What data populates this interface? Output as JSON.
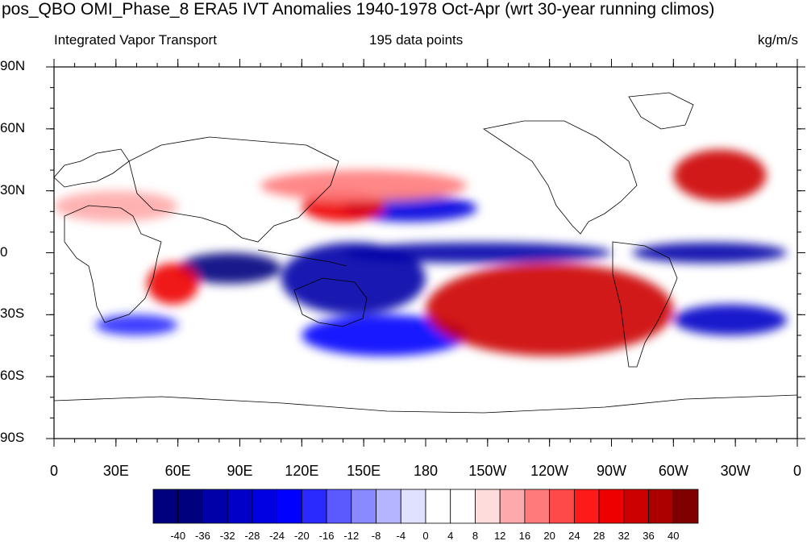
{
  "title": "pos_QBO OMI_Phase_8 ERA5 IVT Anomalies 1940-1978 Oct-Apr (wrt 30-year running climos)",
  "subtitle_left": "Integrated Vapor Transport",
  "subtitle_center": "195 data points",
  "subtitle_right": "kg/m/s",
  "y_ticks": [
    "90N",
    "60N",
    "30N",
    "0",
    "30S",
    "60S",
    "90S"
  ],
  "x_ticks": [
    "0",
    "30E",
    "60E",
    "90E",
    "120E",
    "150E",
    "180",
    "150W",
    "120W",
    "90W",
    "60W",
    "30W",
    "0"
  ],
  "colorbar": {
    "labels": [
      "-40",
      "-36",
      "-32",
      "-28",
      "-24",
      "-20",
      "-16",
      "-12",
      "-8",
      "-4",
      "0",
      "4",
      "8",
      "12",
      "16",
      "20",
      "24",
      "28",
      "32",
      "36",
      "40"
    ],
    "colors": [
      "#00007f",
      "#0000a8",
      "#0000c8",
      "#0000e0",
      "#0000ff",
      "#2a2aff",
      "#5a5aff",
      "#8a8aff",
      "#b5b5ff",
      "#e0e0ff",
      "#ffffff",
      "#ffffff",
      "#ffdcdc",
      "#ffaaaa",
      "#ff7a7a",
      "#ff4a4a",
      "#ff1a1a",
      "#ee0000",
      "#cc0000",
      "#aa0000",
      "#800000"
    ]
  },
  "chart_data": {
    "type": "heatmap",
    "title": "pos_QBO OMI_Phase_8 ERA5 IVT Anomalies 1940-1978 Oct-Apr (wrt 30-year running climos)",
    "variable": "Integrated Vapor Transport",
    "units": "kg/m/s",
    "n_points": 195,
    "lon_range": [
      0,
      360
    ],
    "lat_range": [
      -90,
      90
    ],
    "levels": [
      -40,
      -36,
      -32,
      -28,
      -24,
      -20,
      -16,
      -12,
      -8,
      -4,
      0,
      4,
      8,
      12,
      16,
      20,
      24,
      28,
      32,
      36,
      40
    ],
    "anomaly_features": [
      {
        "sign": "neg",
        "lon": [
          110,
          180
        ],
        "lat": [
          -30,
          5
        ],
        "value": -36
      },
      {
        "sign": "neg",
        "lon": [
          60,
          110
        ],
        "lat": [
          -15,
          0
        ],
        "value": -40
      },
      {
        "sign": "neg",
        "lon": [
          140,
          270
        ],
        "lat": [
          -5,
          5
        ],
        "value": -36
      },
      {
        "sign": "neg",
        "lon": [
          280,
          355
        ],
        "lat": [
          -5,
          5
        ],
        "value": -36
      },
      {
        "sign": "neg",
        "lon": [
          300,
          355
        ],
        "lat": [
          -40,
          -25
        ],
        "value": -32
      },
      {
        "sign": "neg",
        "lon": [
          120,
          200
        ],
        "lat": [
          -50,
          -30
        ],
        "value": -24
      },
      {
        "sign": "neg",
        "lon": [
          140,
          205
        ],
        "lat": [
          15,
          28
        ],
        "value": -28
      },
      {
        "sign": "neg",
        "lon": [
          20,
          60
        ],
        "lat": [
          -40,
          -30
        ],
        "value": -20
      },
      {
        "sign": "pos",
        "lon": [
          180,
          300
        ],
        "lat": [
          -50,
          -5
        ],
        "value": 32
      },
      {
        "sign": "pos",
        "lon": [
          300,
          345
        ],
        "lat": [
          25,
          50
        ],
        "value": 32
      },
      {
        "sign": "pos",
        "lon": [
          45,
          70
        ],
        "lat": [
          -25,
          -5
        ],
        "value": 28
      },
      {
        "sign": "pos",
        "lon": [
          120,
          160
        ],
        "lat": [
          15,
          30
        ],
        "value": 28
      },
      {
        "sign": "pos",
        "lon": [
          100,
          200
        ],
        "lat": [
          25,
          40
        ],
        "value": 16
      },
      {
        "sign": "pos",
        "lon": [
          0,
          60
        ],
        "lat": [
          15,
          30
        ],
        "value": 12
      }
    ]
  }
}
